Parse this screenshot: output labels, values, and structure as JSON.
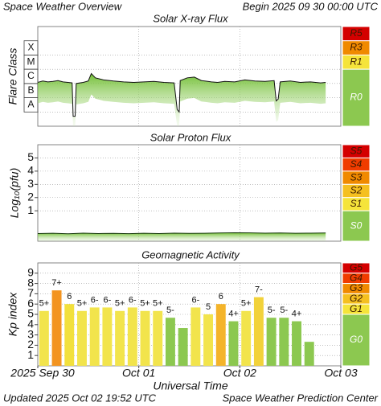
{
  "header": {
    "title": "Space Weather Overview",
    "begin": "Begin 2025 09 30 00:00 UTC"
  },
  "footer": {
    "updated": "Updated 2025 Oct 02 19:52 UTC",
    "source": "Space Weather Prediction Center"
  },
  "chart_data": [
    {
      "type": "line",
      "title": "Solar X-ray Flux",
      "y_label": "Flare Class",
      "log_y": true,
      "grid": true,
      "color": "#111111",
      "fill_color": "#7cc43c",
      "xlim": [
        0,
        3
      ],
      "ylim": [
        1e-09,
        0.01
      ],
      "yticks": [
        {
          "value": 1e-08,
          "label": "A"
        },
        {
          "value": 1e-07,
          "label": "B"
        },
        {
          "value": 1e-06,
          "label": "C"
        },
        {
          "value": 1e-05,
          "label": "M"
        },
        {
          "value": 0.0001,
          "label": "X"
        }
      ],
      "scale": [
        {
          "label": "R5",
          "color": "#d40000"
        },
        {
          "label": "R3",
          "color": "#f08a00"
        },
        {
          "label": "R1",
          "color": "#f5e43a"
        },
        {
          "label": "R0",
          "color": "#8cc850"
        }
      ],
      "x": [
        0,
        0.05,
        0.1,
        0.15,
        0.2,
        0.25,
        0.3,
        0.34,
        0.35,
        0.37,
        0.38,
        0.45,
        0.5,
        0.53,
        0.57,
        0.65,
        0.75,
        0.85,
        0.95,
        1.05,
        1.15,
        1.25,
        1.35,
        1.38,
        1.4,
        1.41,
        1.48,
        1.55,
        1.62,
        1.72,
        1.78,
        1.85,
        1.95,
        2.05,
        2.15,
        2.25,
        2.34,
        2.36,
        2.38,
        2.4,
        2.5,
        2.6,
        2.7,
        2.8,
        2.85
      ],
      "values": [
        1.2e-06,
        1.5e-06,
        1.3e-06,
        1.4e-06,
        1.6e-06,
        1.3e-06,
        1.2e-06,
        1.1e-06,
        5e-09,
        5e-09,
        1e-06,
        1.2e-06,
        1.5e-06,
        5e-06,
        2.5e-06,
        1.8e-06,
        1.5e-06,
        1.3e-06,
        1.2e-06,
        1.3e-06,
        1.4e-06,
        1.2e-06,
        1.1e-06,
        1.5e-08,
        1e-08,
        1.6e-06,
        2.5e-06,
        2.8e-06,
        1.6e-06,
        1.3e-06,
        1.2e-06,
        1.4e-06,
        1.3e-06,
        1.8e-06,
        1.5e-06,
        1.4e-06,
        1.6e-06,
        6e-08,
        8e-08,
        1.3e-06,
        1.5e-06,
        1.2e-06,
        1.3e-06,
        1.1e-06,
        1.2e-06
      ]
    },
    {
      "type": "line",
      "title": "Solar Proton Flux",
      "y_label": "Log₁₀(pfu)",
      "grid": true,
      "color": "#1a3a10",
      "fill_color": "#7cc43c",
      "xlim": [
        0,
        3
      ],
      "ylim": [
        -1.3,
        6
      ],
      "yticks": [
        1,
        2,
        3,
        4,
        5
      ],
      "scale": [
        {
          "label": "S5",
          "color": "#d40000"
        },
        {
          "label": "S4",
          "color": "#f03c00"
        },
        {
          "label": "S3",
          "color": "#f08a00"
        },
        {
          "label": "S2",
          "color": "#f5c020"
        },
        {
          "label": "S1",
          "color": "#f5e43a"
        },
        {
          "label": "S0",
          "color": "#8cc850"
        }
      ],
      "x": [
        0,
        0.15,
        0.3,
        0.45,
        0.6,
        0.75,
        0.9,
        1.05,
        1.2,
        1.35,
        1.5,
        1.65,
        1.8,
        1.95,
        2.1,
        2.25,
        2.4,
        2.55,
        2.7,
        2.85
      ],
      "values": [
        -0.72,
        -0.7,
        -0.74,
        -0.69,
        -0.72,
        -0.71,
        -0.73,
        -0.7,
        -0.72,
        -0.69,
        -0.71,
        -0.7,
        -0.68,
        -0.66,
        -0.67,
        -0.69,
        -0.68,
        -0.7,
        -0.69,
        -0.68
      ]
    },
    {
      "type": "bar",
      "title": "Geomagnetic Activity",
      "y_label": "Kp index",
      "x_label": "Universal Time",
      "grid": true,
      "xlim": [
        0,
        3
      ],
      "ylim": [
        0,
        10
      ],
      "yticks": [
        1,
        2,
        3,
        4,
        5,
        6,
        7,
        8,
        9
      ],
      "xticks": [
        {
          "value": 0,
          "label": "2025 Sep 30"
        },
        {
          "value": 1,
          "label": "Oct 01"
        },
        {
          "value": 2,
          "label": "Oct 02"
        },
        {
          "value": 3,
          "label": "Oct 03"
        }
      ],
      "scale": [
        {
          "label": "G5",
          "color": "#d40000"
        },
        {
          "label": "G4",
          "color": "#f03c00"
        },
        {
          "label": "G3",
          "color": "#f08a00"
        },
        {
          "label": "G2",
          "color": "#f5c020"
        },
        {
          "label": "G1",
          "color": "#f5e43a"
        },
        {
          "label": "G0",
          "color": "#8cc850"
        }
      ],
      "x": [
        0,
        0.125,
        0.25,
        0.375,
        0.5,
        0.625,
        0.75,
        0.875,
        1,
        1.125,
        1.25,
        1.375,
        1.5,
        1.625,
        1.75,
        1.875,
        2,
        2.125,
        2.25,
        2.375,
        2.5,
        2.625
      ],
      "values": [
        5.33,
        7.33,
        6,
        5.33,
        5.67,
        5.67,
        5.33,
        5.67,
        5.33,
        5.33,
        4.67,
        3.67,
        5.67,
        5,
        6,
        4.33,
        5.33,
        6.67,
        4.67,
        4.67,
        4.33,
        2.33
      ],
      "value_labels": [
        "5+",
        "7+",
        "6",
        "5+",
        "6-",
        "6-",
        "5+",
        "6-",
        "5+",
        "5+",
        "5-",
        null,
        "6-",
        "5",
        "6",
        "4+",
        "5+",
        "7-",
        "5-",
        "5-",
        "4+",
        null
      ],
      "colors": [
        "#f2e44c",
        "#f39420",
        "#f2e03c",
        "#f2e44c",
        "#f2e44c",
        "#f2e44c",
        "#f2e44c",
        "#f2e44c",
        "#f2e44c",
        "#f2e44c",
        "#8cc850",
        "#8cc850",
        "#f2e44c",
        "#f2e44c",
        "#f4b42a",
        "#8cc850",
        "#f2e44c",
        "#f2d23a",
        "#8cc850",
        "#8cc850",
        "#8cc850",
        "#8cc850"
      ]
    }
  ]
}
